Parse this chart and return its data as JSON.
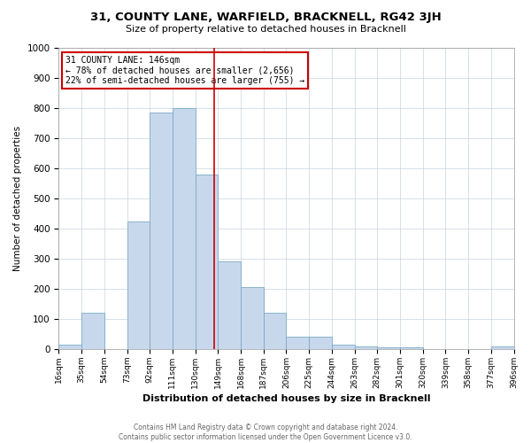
{
  "title": "31, COUNTY LANE, WARFIELD, BRACKNELL, RG42 3JH",
  "subtitle": "Size of property relative to detached houses in Bracknell",
  "xlabel": "Distribution of detached houses by size in Bracknell",
  "ylabel": "Number of detached properties",
  "bar_color": "#c8d8ec",
  "bar_edge_color": "#7aaac8",
  "background_color": "#ffffff",
  "grid_color": "#c8d4e0",
  "property_line_x": 146,
  "property_line_color": "#cc0000",
  "bin_edges": [
    16,
    35,
    54,
    73,
    92,
    111,
    130,
    149,
    168,
    187,
    206,
    225,
    244,
    263,
    282,
    301,
    320,
    339,
    358,
    377,
    396
  ],
  "bar_heights": [
    15,
    120,
    0,
    425,
    785,
    800,
    580,
    290,
    205,
    120,
    40,
    40,
    15,
    10,
    5,
    5,
    0,
    0,
    0,
    10
  ],
  "ylim": [
    0,
    1000
  ],
  "yticks": [
    0,
    100,
    200,
    300,
    400,
    500,
    600,
    700,
    800,
    900,
    1000
  ],
  "annotation_title": "31 COUNTY LANE: 146sqm",
  "annotation_line1": "← 78% of detached houses are smaller (2,656)",
  "annotation_line2": "22% of semi-detached houses are larger (755) →",
  "annotation_box_color": "#ffffff",
  "annotation_border_color": "#cc0000",
  "footer_line1": "Contains HM Land Registry data © Crown copyright and database right 2024.",
  "footer_line2": "Contains public sector information licensed under the Open Government Licence v3.0."
}
